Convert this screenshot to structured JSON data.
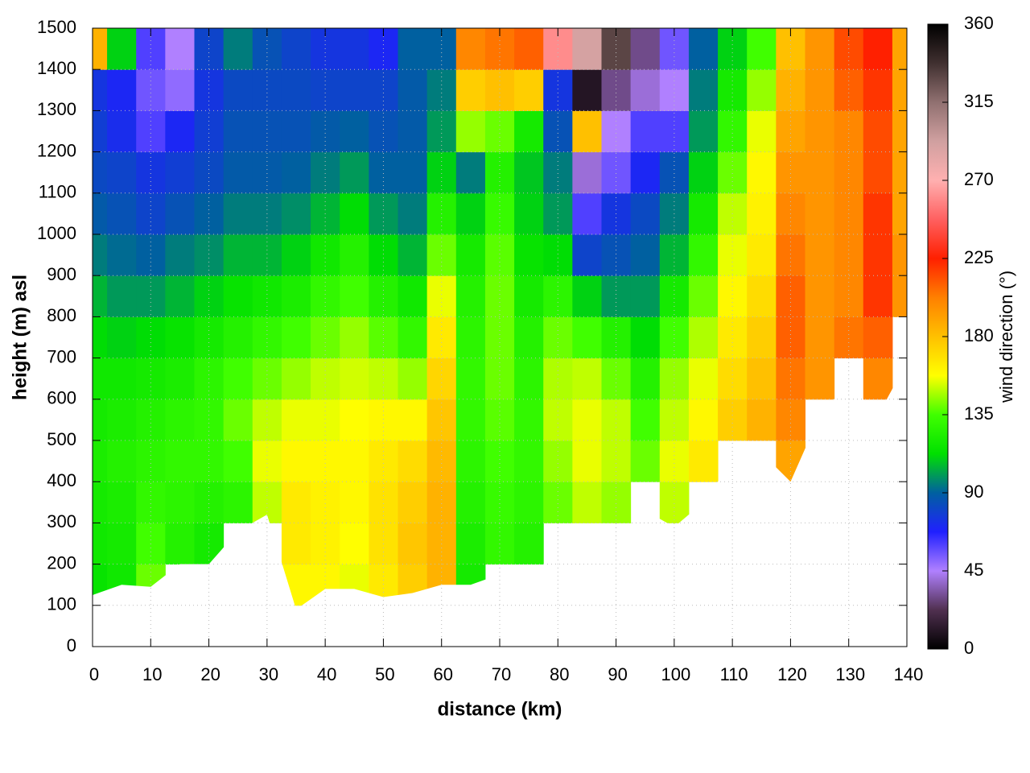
{
  "chart_data": {
    "type": "heatmap",
    "xlabel": "distance (km)",
    "ylabel": "height (m) asl",
    "colorbar_label": "wind direction (°)",
    "xlim": [
      0,
      140
    ],
    "xticks": [
      0,
      10,
      20,
      30,
      40,
      50,
      60,
      70,
      80,
      90,
      100,
      110,
      120,
      130,
      140
    ],
    "ylim": [
      0,
      1500
    ],
    "yticks": [
      0,
      100,
      200,
      300,
      400,
      500,
      600,
      700,
      800,
      900,
      1000,
      1100,
      1200,
      1300,
      1400,
      1500
    ],
    "zlim": [
      0,
      360
    ],
    "zticks": [
      0,
      45,
      90,
      135,
      180,
      225,
      270,
      315,
      360
    ],
    "grid": true,
    "colormap": [
      "#000000",
      "#503050",
      "#b080ff",
      "#2020ff",
      "#0060a0",
      "#00e000",
      "#40ff00",
      "#ffff00",
      "#ffc000",
      "#ff8000",
      "#ff2000",
      "#ff6060",
      "#ffb0b0",
      "#d0a0a0",
      "#907070",
      "#403030",
      "#000000"
    ],
    "x": [
      0,
      5,
      10,
      15,
      20,
      25,
      30,
      35,
      40,
      45,
      50,
      55,
      60,
      65,
      70,
      75,
      80,
      85,
      90,
      95,
      100,
      105,
      110,
      115,
      120,
      125,
      130,
      135,
      140
    ],
    "y": [
      150,
      250,
      350,
      450,
      550,
      650,
      750,
      850,
      950,
      1050,
      1150,
      1250,
      1350,
      1450
    ],
    "ground": [
      125,
      150,
      145,
      200,
      200,
      280,
      320,
      90,
      140,
      140,
      120,
      130,
      150,
      150,
      175,
      175,
      200,
      220,
      260,
      330,
      290,
      350,
      450,
      470,
      400,
      560,
      640,
      560,
      690
    ],
    "z": [
      [
        115,
        118,
        120,
        122,
        120,
        118,
        112,
        105,
        95,
        88,
        82,
        78,
        75,
        185
      ],
      [
        118,
        120,
        122,
        125,
        122,
        118,
        110,
        100,
        92,
        85,
        80,
        72,
        70,
        110
      ],
      [
        140,
        135,
        130,
        128,
        125,
        120,
        112,
        100,
        90,
        80,
        75,
        60,
        55,
        60
      ],
      [
        null,
        125,
        128,
        130,
        128,
        122,
        115,
        105,
        95,
        85,
        78,
        70,
        50,
        45
      ],
      [
        null,
        120,
        125,
        130,
        130,
        128,
        120,
        110,
        98,
        90,
        82,
        78,
        75,
        80
      ],
      [
        null,
        null,
        128,
        135,
        140,
        135,
        125,
        115,
        105,
        95,
        88,
        85,
        82,
        95
      ],
      [
        null,
        null,
        150,
        155,
        150,
        140,
        130,
        118,
        105,
        95,
        88,
        85,
        82,
        85
      ],
      [
        160,
        165,
        165,
        160,
        155,
        145,
        135,
        122,
        110,
        98,
        90,
        85,
        82,
        80
      ],
      [
        160,
        162,
        162,
        160,
        155,
        150,
        140,
        130,
        118,
        105,
        95,
        88,
        80,
        75
      ],
      [
        155,
        158,
        160,
        160,
        158,
        152,
        145,
        135,
        125,
        112,
        100,
        90,
        80,
        75
      ],
      [
        165,
        168,
        168,
        165,
        160,
        150,
        138,
        125,
        112,
        100,
        90,
        85,
        80,
        70
      ],
      [
        175,
        178,
        175,
        170,
        160,
        145,
        130,
        118,
        105,
        95,
        90,
        88,
        88,
        90
      ],
      [
        185,
        185,
        185,
        182,
        178,
        172,
        165,
        155,
        140,
        125,
        110,
        100,
        95,
        90
      ],
      [
        120,
        122,
        125,
        128,
        130,
        130,
        128,
        125,
        120,
        110,
        95,
        145,
        175,
        200
      ],
      [
        null,
        130,
        132,
        135,
        138,
        140,
        140,
        140,
        138,
        132,
        125,
        140,
        180,
        205
      ],
      [
        null,
        125,
        128,
        130,
        130,
        128,
        125,
        120,
        115,
        110,
        108,
        120,
        175,
        210
      ],
      [
        null,
        null,
        140,
        145,
        150,
        148,
        140,
        128,
        112,
        100,
        95,
        85,
        75,
        260
      ],
      [
        null,
        null,
        150,
        155,
        155,
        150,
        135,
        110,
        80,
        60,
        40,
        180,
        10,
        290
      ],
      [
        null,
        null,
        145,
        150,
        150,
        140,
        125,
        100,
        85,
        75,
        55,
        45,
        30,
        330
      ],
      [
        null,
        null,
        null,
        140,
        135,
        125,
        112,
        100,
        90,
        82,
        70,
        60,
        40,
        30
      ],
      [
        null,
        null,
        150,
        155,
        150,
        145,
        135,
        120,
        105,
        95,
        85,
        60,
        45,
        55
      ],
      [
        null,
        null,
        null,
        165,
        160,
        155,
        148,
        140,
        130,
        120,
        110,
        100,
        95,
        90
      ],
      [
        null,
        null,
        null,
        null,
        175,
        170,
        165,
        160,
        155,
        150,
        140,
        130,
        120,
        110
      ],
      [
        null,
        null,
        null,
        null,
        185,
        180,
        175,
        170,
        165,
        162,
        160,
        155,
        145,
        135
      ],
      [
        null,
        null,
        null,
        190,
        200,
        205,
        210,
        210,
        205,
        200,
        195,
        190,
        185,
        180
      ],
      [
        null,
        null,
        null,
        null,
        null,
        195,
        195,
        195,
        195,
        195,
        195,
        195,
        195,
        195
      ],
      [
        null,
        null,
        null,
        null,
        null,
        null,
        205,
        200,
        200,
        200,
        200,
        200,
        210,
        215
      ],
      [
        null,
        null,
        null,
        null,
        null,
        200,
        210,
        220,
        220,
        220,
        215,
        215,
        220,
        225
      ],
      [
        null,
        null,
        null,
        null,
        null,
        null,
        null,
        195,
        195,
        190,
        190,
        190,
        190,
        190
      ]
    ]
  }
}
